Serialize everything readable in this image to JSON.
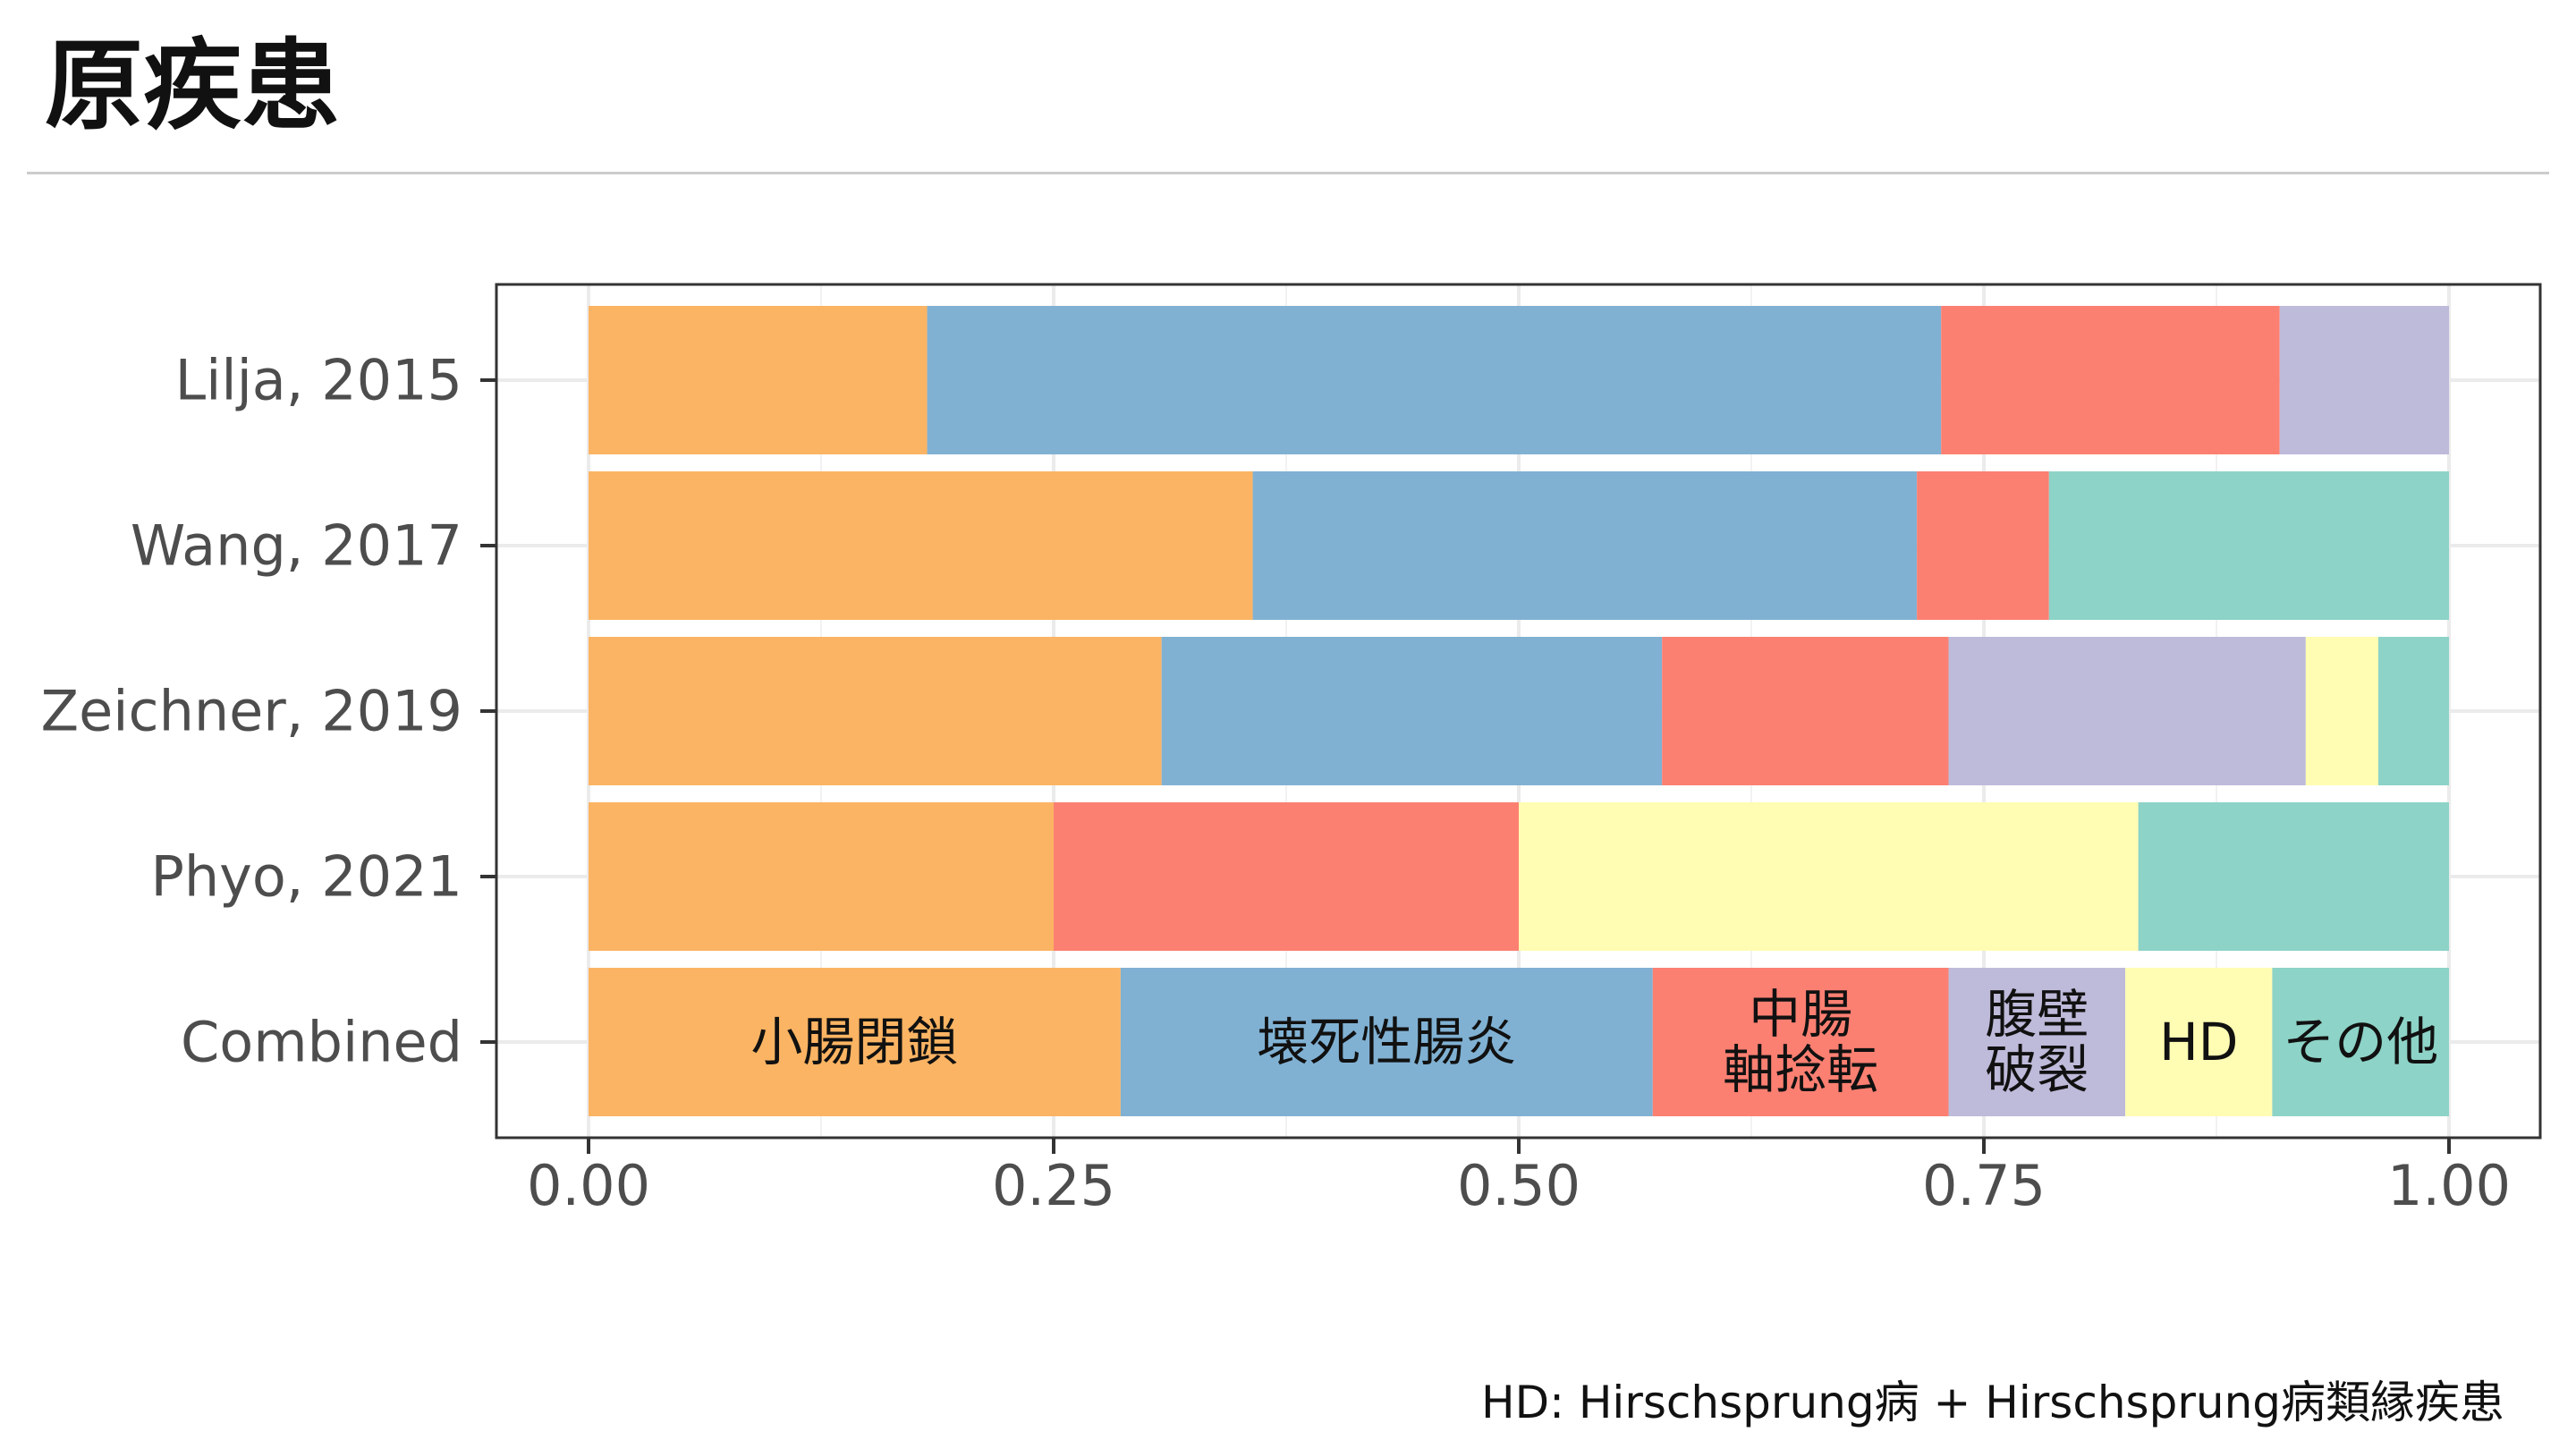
{
  "header": {
    "title": "原疾患"
  },
  "footnote": "HD: Hirschsprung病 + Hirschsprung病類縁疾患",
  "chart_data": {
    "type": "bar",
    "orientation": "horizontal",
    "stacked": true,
    "normalized": true,
    "categories": [
      "Lilja, 2015",
      "Wang, 2017",
      "Zeichner, 2019",
      "Phyo, 2021",
      "Combined"
    ],
    "series": [
      {
        "name": "小腸閉鎖",
        "color": "#FBB463",
        "values": [
          0.182,
          0.357,
          0.308,
          0.25,
          0.286
        ]
      },
      {
        "name": "壊死性腸炎",
        "color": "#80B1D3",
        "values": [
          0.545,
          0.357,
          0.269,
          0.0,
          0.286
        ]
      },
      {
        "name": "中腸\n軸捻転",
        "color": "#FB8072",
        "values": [
          0.182,
          0.071,
          0.154,
          0.25,
          0.159
        ]
      },
      {
        "name": "腹壁\n破裂",
        "color": "#BEBADA",
        "values": [
          0.091,
          0.0,
          0.192,
          0.0,
          0.095
        ]
      },
      {
        "name": "HD",
        "color": "#FFFCB3",
        "values": [
          0.0,
          0.0,
          0.039,
          0.333,
          0.079
        ]
      },
      {
        "name": "その他",
        "color": "#8DD3C7",
        "values": [
          0.0,
          0.215,
          0.038,
          0.167,
          0.095
        ]
      }
    ],
    "segment_labels_row": "Combined",
    "xlim": [
      0,
      1
    ],
    "xticks": [
      "0.00",
      "0.25",
      "0.50",
      "0.75",
      "1.00"
    ],
    "xlabel": "",
    "ylabel": "",
    "grid": true,
    "legend": "none"
  }
}
